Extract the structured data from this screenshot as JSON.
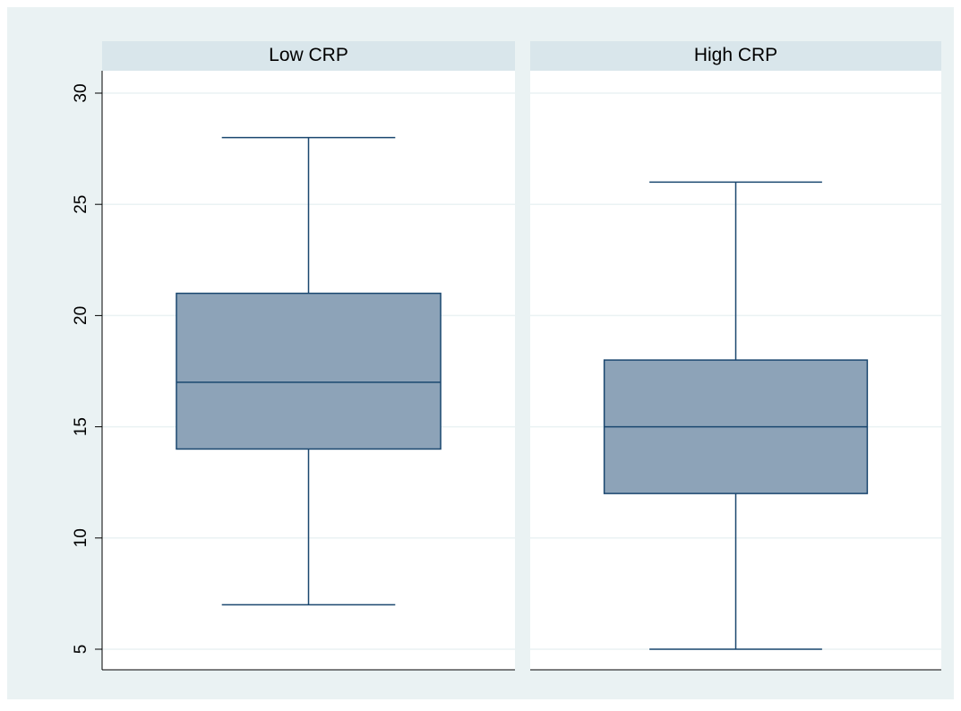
{
  "chart_data": {
    "type": "box",
    "ylim": [
      5,
      30
    ],
    "yticks": [
      5,
      10,
      15,
      20,
      25,
      30
    ],
    "grid": true,
    "panels": [
      {
        "label": "Low CRP",
        "whisker_low": 7,
        "q1": 14,
        "median": 17,
        "q3": 21,
        "whisker_high": 28
      },
      {
        "label": "High CRP",
        "whisker_low": 5,
        "q1": 12,
        "median": 15,
        "q3": 18,
        "whisker_high": 26
      }
    ]
  },
  "colors": {
    "background": "#eaf2f3",
    "plot_region": "#ffffff",
    "panel_header": "#d9e6eb",
    "box_fill": "#8da3b8",
    "box_line": "#1a476f",
    "grid": "#eaf2f3",
    "axis": "#000000"
  }
}
